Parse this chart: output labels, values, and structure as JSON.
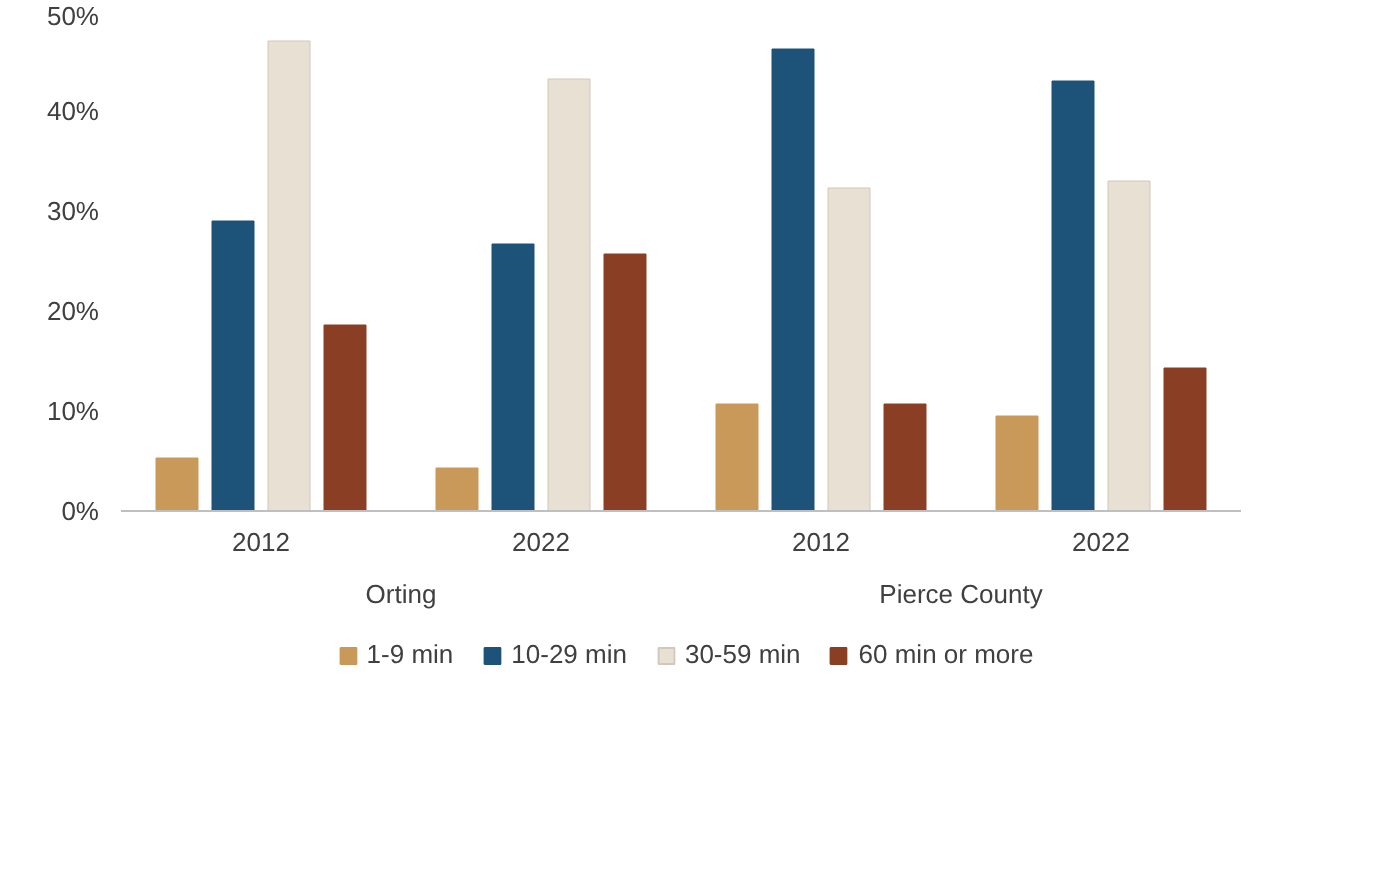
{
  "chart_data": {
    "type": "bar",
    "categories": [
      "2012",
      "2022",
      "2012",
      "2022"
    ],
    "annotations": [
      "Orting",
      "Pierce County"
    ],
    "series": [
      {
        "name": "1-9 min",
        "color": "#c9995a",
        "values": [
          5.3,
          4.3,
          10.7,
          9.5
        ]
      },
      {
        "name": "10-29 min",
        "color": "#1d5378",
        "values": [
          29,
          26.7,
          46.2,
          43
        ]
      },
      {
        "name": "30-59 min",
        "color": "#e8e1d3",
        "values": [
          47,
          43.2,
          32.3,
          33
        ]
      },
      {
        "name": "60 min or more",
        "color": "#8a3e24",
        "values": [
          18.6,
          25.7,
          10.7,
          14.3
        ]
      }
    ],
    "ylim": [
      0,
      50
    ],
    "yticks": [
      {
        "value": 0,
        "label": "0%"
      },
      {
        "value": 10,
        "label": "10%"
      },
      {
        "value": 20,
        "label": "20%"
      },
      {
        "value": 30,
        "label": "30%"
      },
      {
        "value": 40,
        "label": "40%"
      },
      {
        "value": 50,
        "label": "50%"
      }
    ],
    "grid": false,
    "legend": "bottom"
  }
}
